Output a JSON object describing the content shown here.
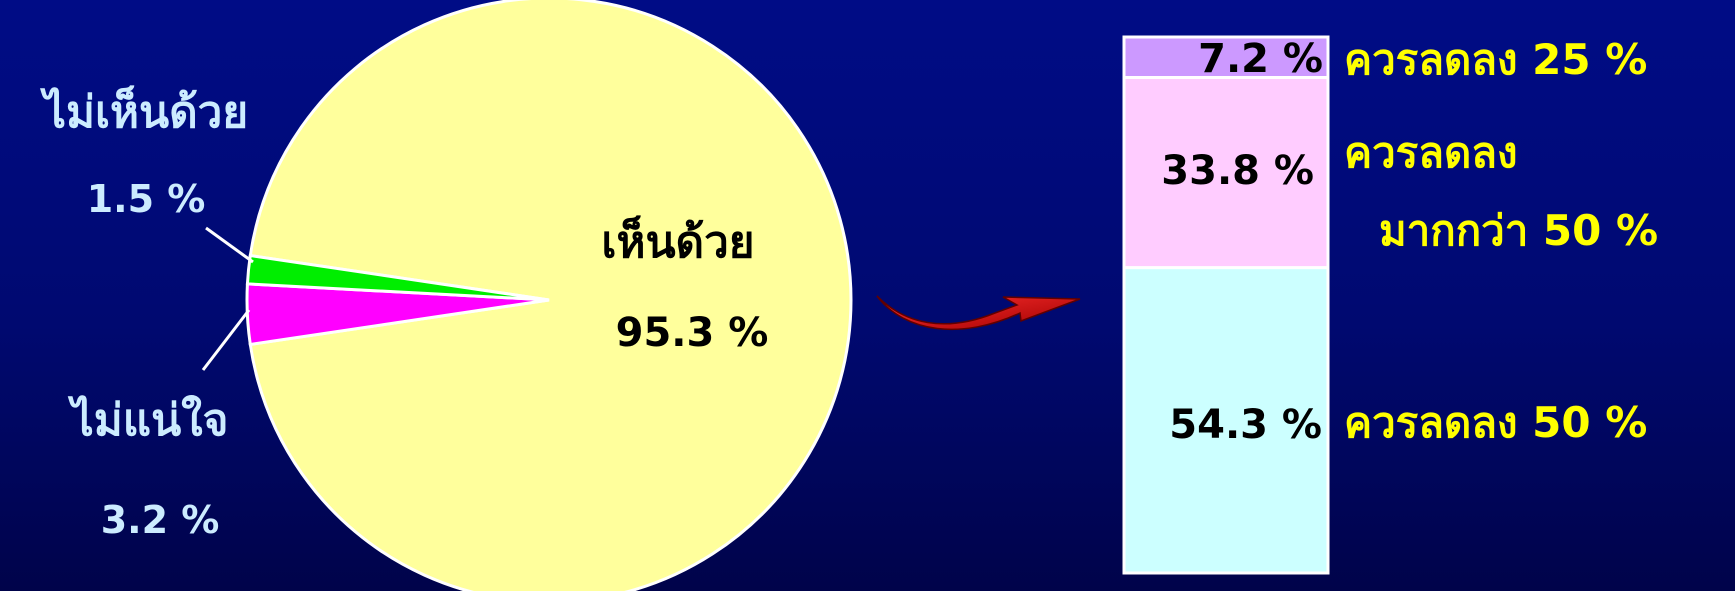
{
  "chart_data": [
    {
      "type": "pie",
      "slices": [
        {
          "label": "เห็นด้วย",
          "value": 95.3,
          "value_text": "95.3 %",
          "color": "#ffff9c"
        },
        {
          "label": "ไม่เห็นด้วย",
          "value": 1.5,
          "value_text": "1.5 %",
          "color": "#00ee00"
        },
        {
          "label": "ไม่แน่ใจ",
          "value": 3.2,
          "value_text": "3.2 %",
          "color": "#ff00ff"
        }
      ]
    },
    {
      "type": "bar",
      "stacked": true,
      "segments": [
        {
          "label": "ควรลดลง 50 %",
          "value": 54.3,
          "value_text": "54.3 %",
          "color": "#ccffff"
        },
        {
          "label_lines": [
            "ควรลดลง",
            "มากกว่า 50 %"
          ],
          "value": 33.8,
          "value_text": "33.8 %",
          "color": "#ffccff"
        },
        {
          "label": "ควรลดลง 25 %",
          "value": 7.2,
          "value_text": "7.2 %",
          "color": "#cc99ff"
        }
      ]
    }
  ],
  "colors": {
    "background": "#000c86",
    "outside_label": "#ccecff",
    "bar_label": "#ffff00",
    "arrow": "#ee0000",
    "outline": "#ffffff"
  },
  "icons": {
    "connector": "curved-arrow-icon"
  }
}
